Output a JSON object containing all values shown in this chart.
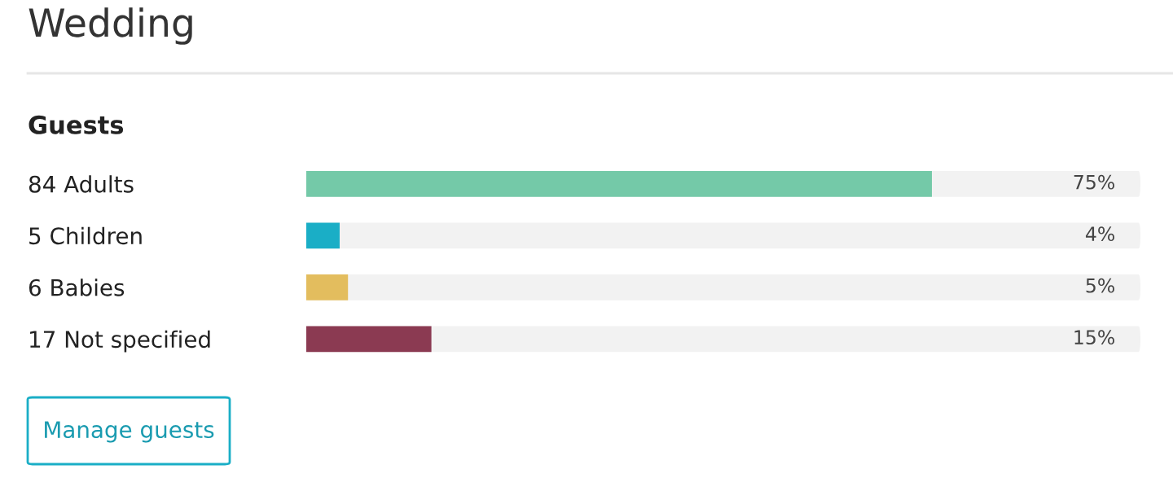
{
  "chart_data": {
    "type": "bar",
    "orientation": "horizontal",
    "title": "Wedding",
    "subtitle": "Guests",
    "categories": [
      "84 Adults",
      "5 Children",
      "6 Babies",
      "17 Not specified"
    ],
    "values": [
      75,
      4,
      5,
      15
    ],
    "colors": [
      "#74c9a8",
      "#1aaec6",
      "#e3bd5e",
      "#8b3a52"
    ],
    "value_labels": [
      "75%",
      "4%",
      "5%",
      "15%"
    ],
    "xlim": [
      0,
      100
    ],
    "tick_labels": "y",
    "grid": false,
    "annotations": [
      "Manage guests"
    ]
  }
}
